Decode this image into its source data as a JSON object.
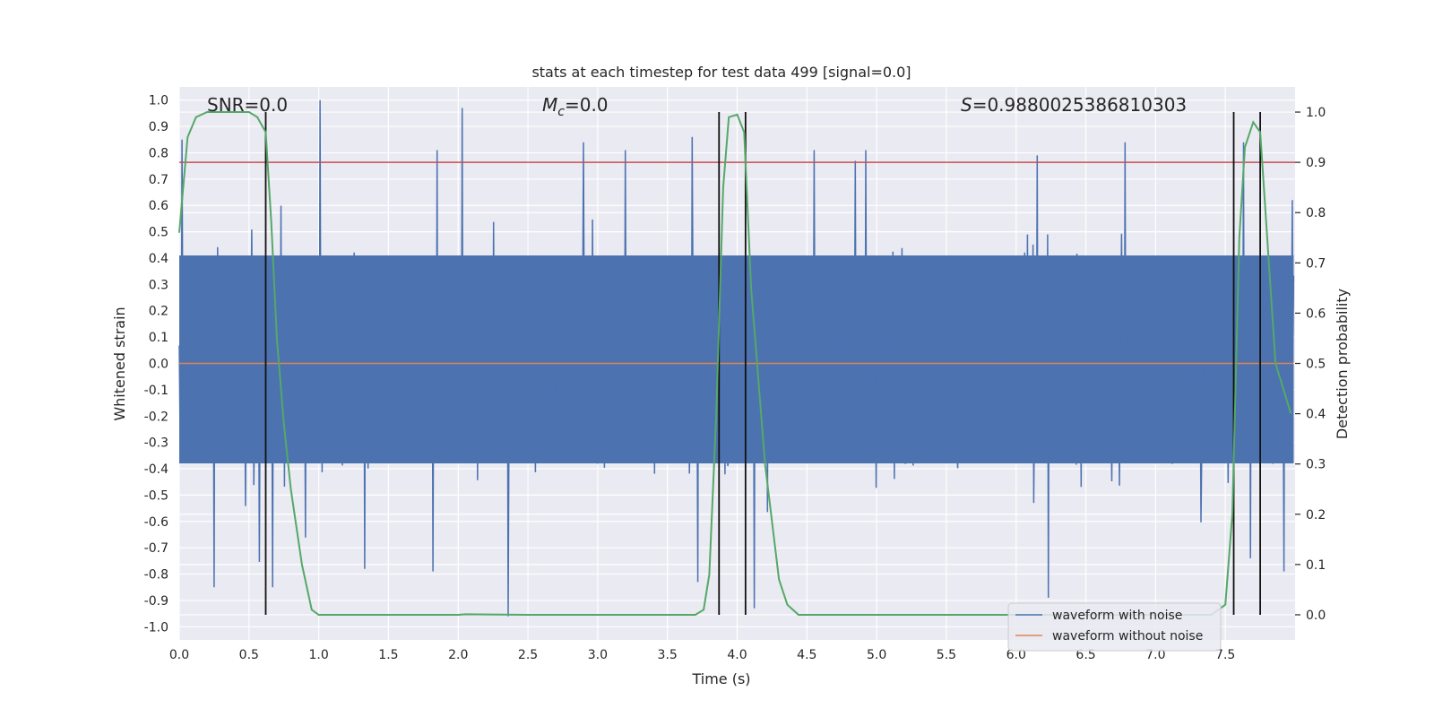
{
  "chart_data": {
    "type": "line",
    "title": "stats at each timestep for test data 499 [signal=0.0]",
    "xlabel": "Time (s)",
    "ylabel": "Whitened strain",
    "y2label": "Detection probability",
    "xlim": [
      0.0,
      8.0
    ],
    "ylim": [
      -1.05,
      1.05
    ],
    "y2lim": [
      -0.05,
      1.05
    ],
    "grid": true,
    "xticks": [
      "0.0",
      "0.5",
      "1.0",
      "1.5",
      "2.0",
      "2.5",
      "3.0",
      "3.5",
      "4.0",
      "4.5",
      "5.0",
      "5.5",
      "6.0",
      "6.5",
      "7.0",
      "7.5"
    ],
    "yticks": [
      "1.0",
      "0.9",
      "0.8",
      "0.7",
      "0.6",
      "0.5",
      "0.4",
      "0.3",
      "0.2",
      "0.1",
      "0.0",
      "-0.1",
      "-0.2",
      "-0.3",
      "-0.4",
      "-0.5",
      "-0.6",
      "-0.7",
      "-0.8",
      "-0.9",
      "-1.0"
    ],
    "y2ticks": [
      "1.0",
      "0.9",
      "0.8",
      "0.7",
      "0.6",
      "0.5",
      "0.4",
      "0.3",
      "0.2",
      "0.1",
      "0.0"
    ],
    "annotations": {
      "snr": "SNR=0.0",
      "mc_symbol": "M",
      "mc_sub": "c",
      "mc_value": "=0.0",
      "s_symbol": "S",
      "s_value": "=0.9880025386810303"
    },
    "threshold": {
      "y2": 0.9,
      "color": "#c44e52"
    },
    "vertical_markers": [
      0.62,
      3.87,
      4.06,
      7.56,
      7.75
    ],
    "noisy_waveform": {
      "name": "waveform with noise",
      "color": "#4c72b0",
      "x_range": [
        0.0,
        7.99
      ],
      "samples": 1600,
      "typical_band": [
        -0.38,
        0.41
      ],
      "spikes": [
        {
          "x": 0.02,
          "y": 0.85
        },
        {
          "x": 0.25,
          "y": -0.85
        },
        {
          "x": 0.62,
          "y": 0.35
        },
        {
          "x": 0.67,
          "y": -0.85
        },
        {
          "x": 1.01,
          "y": 1.0
        },
        {
          "x": 1.33,
          "y": -0.78
        },
        {
          "x": 1.85,
          "y": 0.81
        },
        {
          "x": 1.82,
          "y": -0.79
        },
        {
          "x": 2.03,
          "y": 0.97
        },
        {
          "x": 2.36,
          "y": -0.96
        },
        {
          "x": 2.9,
          "y": 0.84
        },
        {
          "x": 3.2,
          "y": 0.81
        },
        {
          "x": 3.68,
          "y": 0.86
        },
        {
          "x": 3.72,
          "y": -0.83
        },
        {
          "x": 4.12,
          "y": -0.93
        },
        {
          "x": 4.55,
          "y": 0.81
        },
        {
          "x": 4.92,
          "y": 0.81
        },
        {
          "x": 6.15,
          "y": 0.79
        },
        {
          "x": 6.23,
          "y": -0.89
        },
        {
          "x": 6.78,
          "y": 0.84
        },
        {
          "x": 7.63,
          "y": 0.84
        },
        {
          "x": 7.68,
          "y": -0.74
        },
        {
          "x": 7.92,
          "y": -0.79
        },
        {
          "x": 7.98,
          "y": 0.62
        }
      ]
    },
    "clean_waveform": {
      "name": "waveform without noise",
      "color": "#dd8452",
      "y": 0.0
    },
    "detection_probability": {
      "color": "#55a868",
      "x": [
        0.0,
        0.06,
        0.12,
        0.2,
        0.3,
        0.4,
        0.5,
        0.56,
        0.62,
        0.66,
        0.7,
        0.75,
        0.8,
        0.88,
        0.95,
        1.0,
        1.2,
        1.5,
        2.0,
        2.05,
        2.5,
        3.0,
        3.5,
        3.7,
        3.76,
        3.8,
        3.85,
        3.9,
        3.94,
        4.0,
        4.05,
        4.1,
        4.2,
        4.3,
        4.36,
        4.44,
        4.5,
        5.0,
        5.5,
        6.0,
        6.5,
        7.0,
        7.3,
        7.4,
        7.45,
        7.5,
        7.55,
        7.6,
        7.64,
        7.7,
        7.75,
        7.8,
        7.86,
        7.97
      ],
      "y": [
        0.76,
        0.95,
        0.99,
        1.0,
        1.0,
        1.0,
        1.0,
        0.99,
        0.96,
        0.78,
        0.55,
        0.38,
        0.25,
        0.1,
        0.01,
        0.0,
        0.0,
        0.0,
        0.0,
        0.001,
        0.0,
        0.0,
        0.0,
        0.0,
        0.01,
        0.08,
        0.4,
        0.85,
        0.99,
        0.995,
        0.96,
        0.65,
        0.3,
        0.07,
        0.02,
        0.0,
        0.0,
        0.0,
        0.0,
        0.0,
        0.0,
        0.0,
        0.0,
        0.0,
        0.01,
        0.02,
        0.2,
        0.75,
        0.93,
        0.98,
        0.96,
        0.75,
        0.5,
        0.4
      ]
    }
  }
}
